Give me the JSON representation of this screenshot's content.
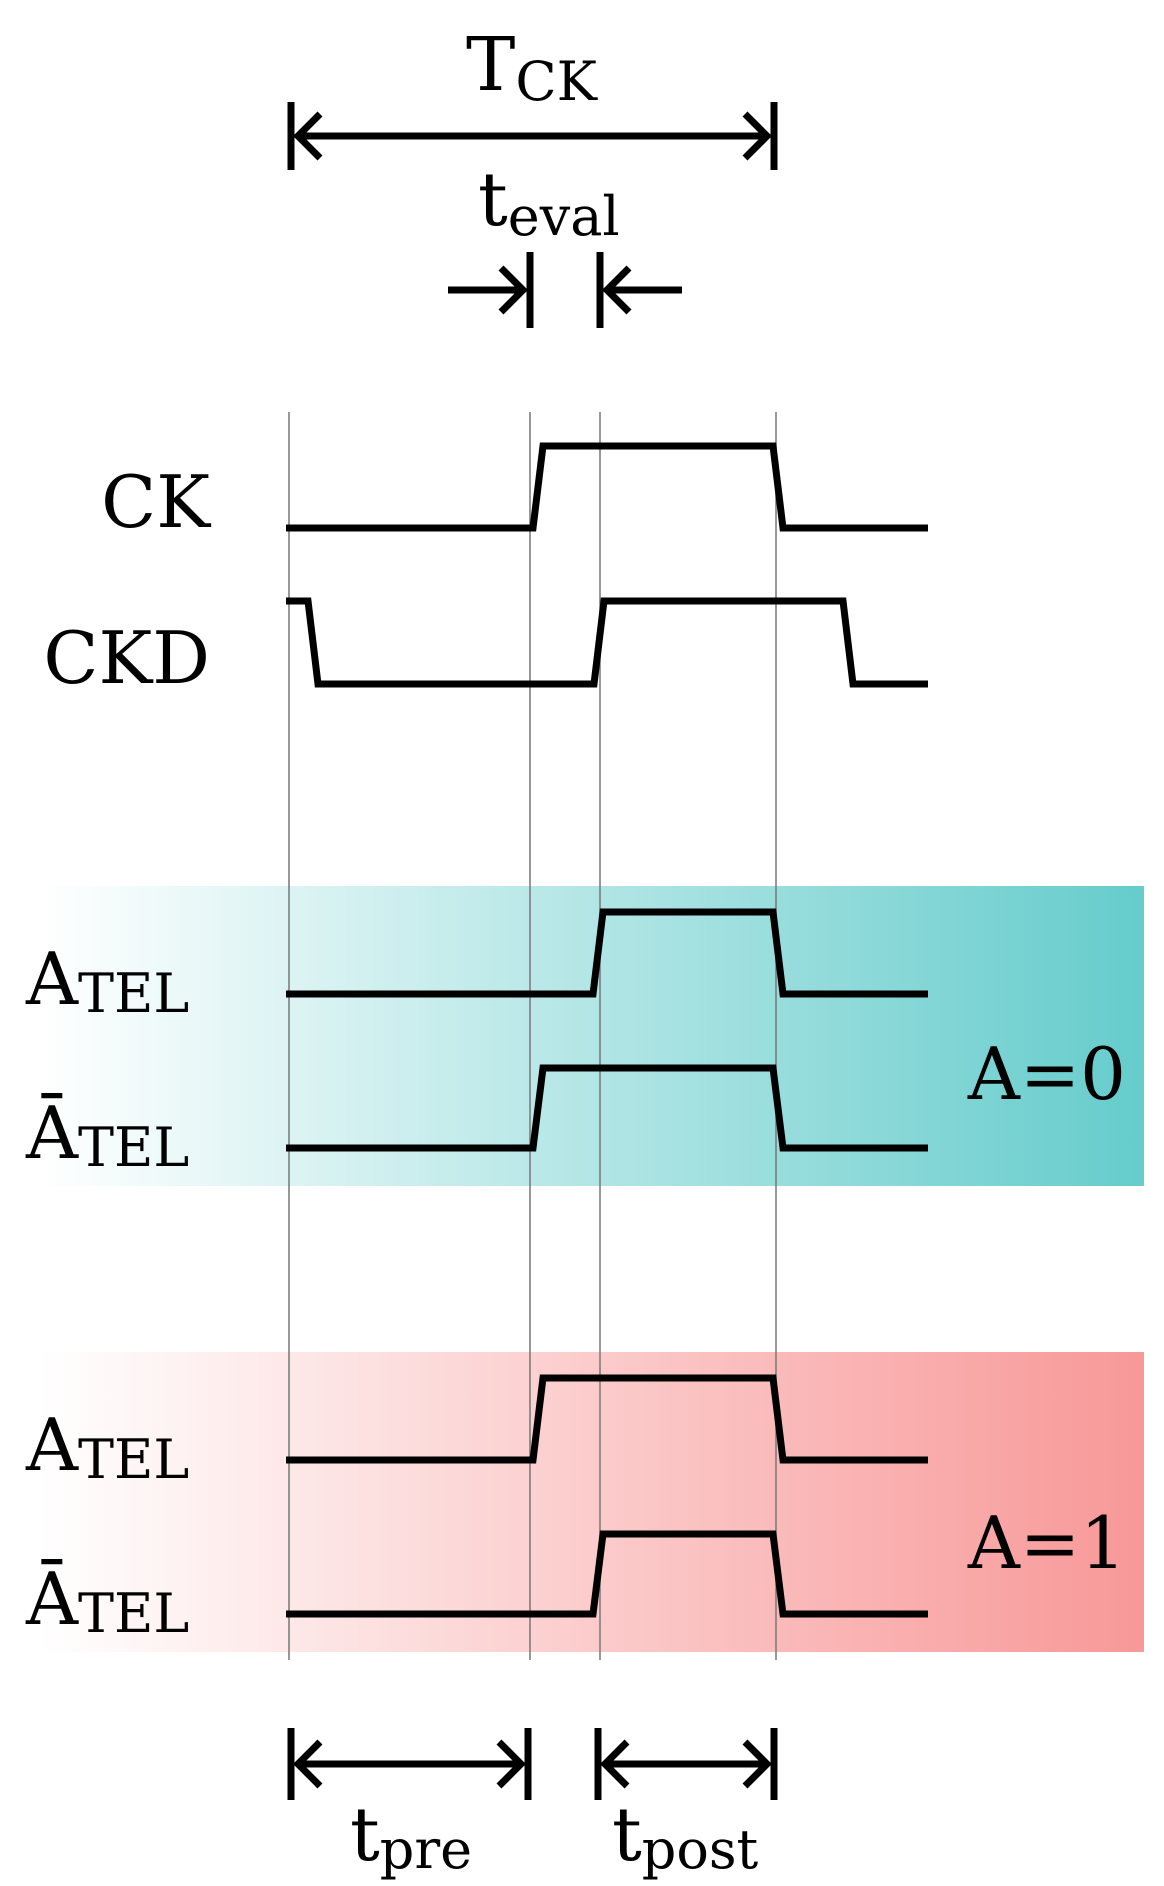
{
  "timing": {
    "period": {
      "main": "T",
      "sub": "CK"
    },
    "eval": {
      "main": "t",
      "sub": "eval"
    },
    "pre": {
      "main": "t",
      "sub": "pre"
    },
    "post": {
      "main": "t",
      "sub": "post"
    }
  },
  "signals": {
    "ck": "CK",
    "ckd": "CKD",
    "a_tel": {
      "main": "A",
      "sub": "TEL"
    },
    "abar_tel": {
      "main": "Ā",
      "sub": "TEL"
    }
  },
  "cases": [
    {
      "label": "A=0",
      "color": "#66cccc"
    },
    {
      "label": "A=1",
      "color": "#f89898"
    }
  ]
}
